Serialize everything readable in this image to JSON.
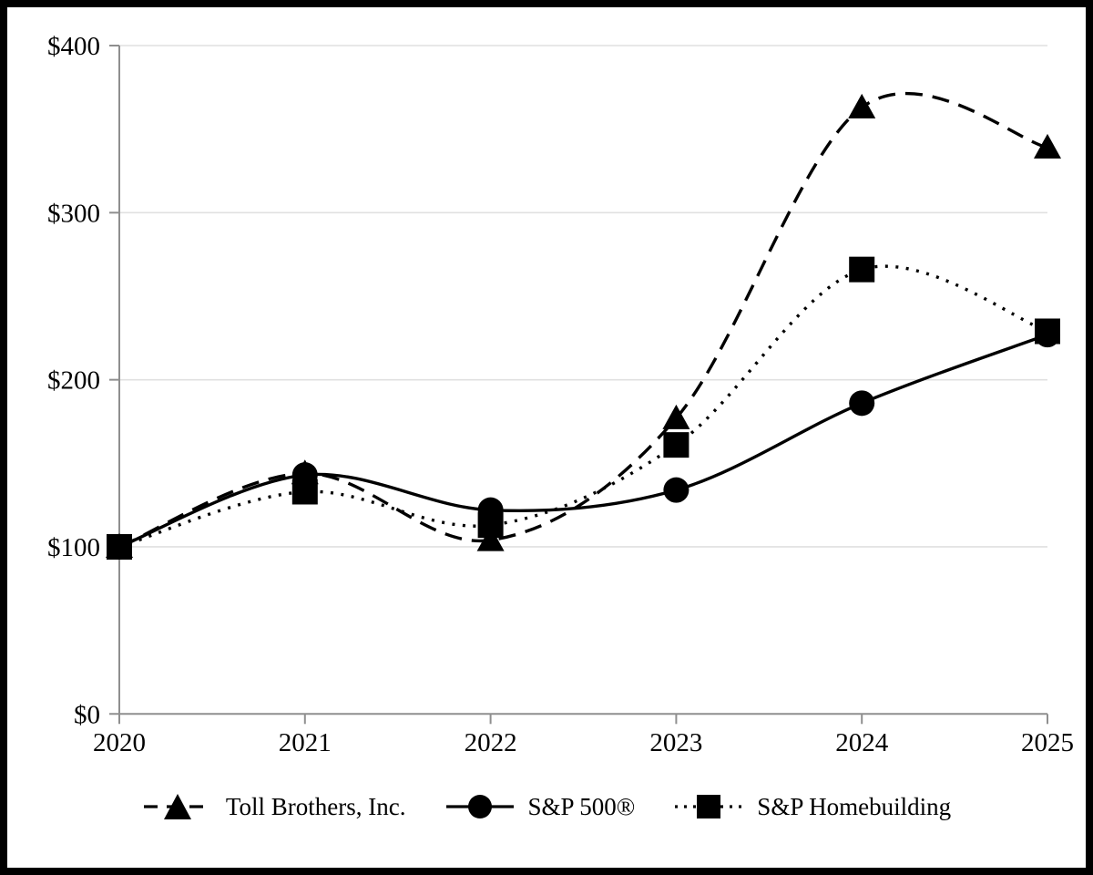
{
  "chart_data": {
    "type": "line",
    "title": "",
    "xlabel": "",
    "ylabel": "",
    "x": [
      2020,
      2021,
      2022,
      2023,
      2024,
      2025
    ],
    "x_labels": [
      "2020",
      "2021",
      "2022",
      "2023",
      "2024",
      "2025"
    ],
    "y_ticks": [
      0,
      100,
      200,
      300,
      400
    ],
    "y_tick_labels": [
      "$0",
      "$100",
      "$200",
      "$300",
      "$400"
    ],
    "ylim": [
      0,
      400
    ],
    "grid": "horizontal",
    "legend_position": "bottom-center",
    "series": [
      {
        "name": "Toll Brothers, Inc.",
        "marker": "triangle",
        "line_style": "dashed",
        "values": [
          100,
          144,
          104,
          177,
          363,
          339
        ]
      },
      {
        "name": "S&P 500®",
        "marker": "circle",
        "line_style": "solid",
        "values": [
          100,
          143,
          122,
          134,
          186,
          227
        ]
      },
      {
        "name": "S&P Homebuilding",
        "marker": "square",
        "line_style": "dotted",
        "values": [
          100,
          133,
          113,
          161,
          266,
          229
        ]
      }
    ],
    "colors": {
      "series": "#000000",
      "gridline": "#e0e0e0",
      "axis": "#8f8f8f",
      "text": "#000000",
      "background": "#ffffff",
      "figure_border": "#000000"
    }
  }
}
